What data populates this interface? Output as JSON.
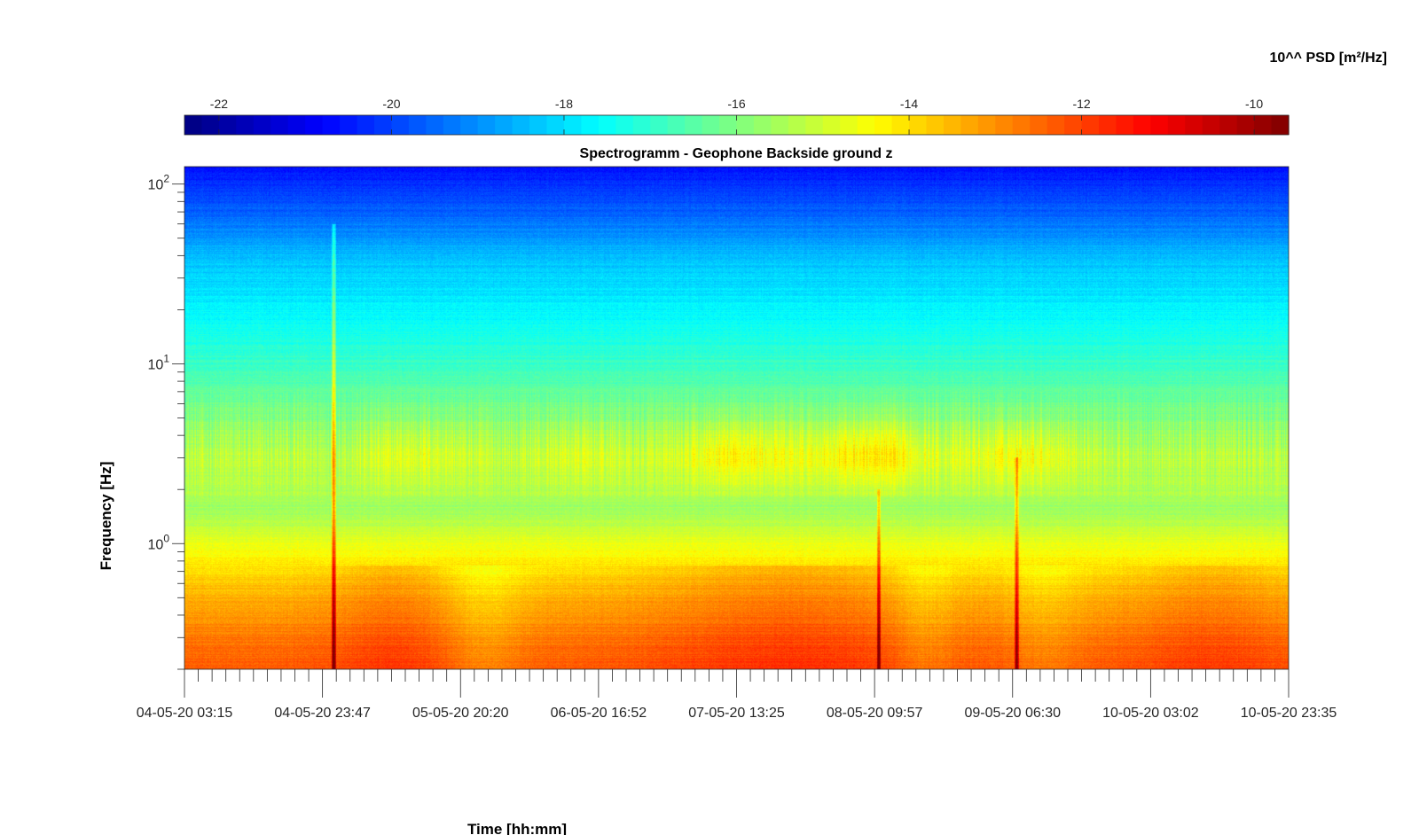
{
  "chart_data": {
    "type": "heatmap",
    "title": "Spectrogramm - Geophone Backside ground z",
    "xlabel": "Time [hh:mm]",
    "ylabel": "Frequency [Hz]",
    "y_scale": "log",
    "ylim": [
      0.2,
      125
    ],
    "y_ticks": [
      {
        "value": 1,
        "base": "10",
        "exp": "0"
      },
      {
        "value": 10,
        "base": "10",
        "exp": "1"
      },
      {
        "value": 100,
        "base": "10",
        "exp": "2"
      }
    ],
    "x_ticks": [
      "04-05-20 03:15",
      "04-05-20 23:47",
      "05-05-20 20:20",
      "06-05-20 16:52",
      "07-05-20 13:25",
      "08-05-20 09:57",
      "09-05-20 06:30",
      "10-05-20 03:02",
      "10-05-20 23:35"
    ],
    "colorbar": {
      "label": "10^^ PSD [m²/Hz]",
      "ticks": [
        "-22",
        "-20",
        "-18",
        "-16",
        "-14",
        "-12",
        "-10"
      ],
      "tick_values": [
        -22,
        -20,
        -18,
        -16,
        -14,
        -12,
        -10
      ],
      "range": [
        -22.4,
        -9.6
      ],
      "colormap": "jet",
      "location": "top"
    },
    "transient_events": [
      {
        "time_fraction": 0.135,
        "max_frequency_hz": 60
      },
      {
        "time_fraction": 0.629,
        "max_frequency_hz": 2
      },
      {
        "time_fraction": 0.754,
        "max_frequency_hz": 3
      }
    ],
    "frequency_profile_log10psd": [
      {
        "frequency_hz": 0.2,
        "log10_psd": -12.3
      },
      {
        "frequency_hz": 0.3,
        "log10_psd": -12.7
      },
      {
        "frequency_hz": 0.5,
        "log10_psd": -13.4
      },
      {
        "frequency_hz": 0.8,
        "log10_psd": -14.2
      },
      {
        "frequency_hz": 1.5,
        "log10_psd": -15.6
      },
      {
        "frequency_hz": 3,
        "log10_psd": -15.2
      },
      {
        "frequency_hz": 6,
        "log10_psd": -16.2
      },
      {
        "frequency_hz": 10,
        "log10_psd": -16.9
      },
      {
        "frequency_hz": 20,
        "log10_psd": -17.7
      },
      {
        "frequency_hz": 40,
        "log10_psd": -18.4
      },
      {
        "frequency_hz": 70,
        "log10_psd": -19.6
      },
      {
        "frequency_hz": 125,
        "log10_psd": -20.6
      }
    ]
  }
}
